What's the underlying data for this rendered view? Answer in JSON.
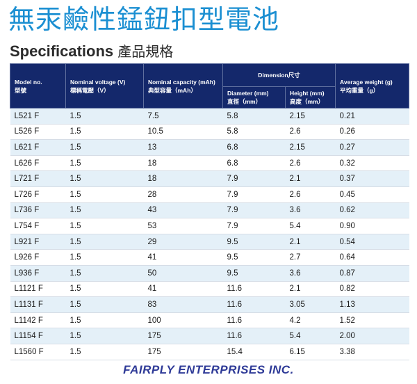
{
  "title": {
    "zh": "無汞鹼性錳鈕扣型電池",
    "en": "Specifications",
    "en_zh": "產品規格"
  },
  "table": {
    "headers": {
      "model": {
        "en": "Model no.",
        "zh": "型號"
      },
      "voltage": {
        "en": "Nominal voltage (V)",
        "zh": "標稱電壓（V）"
      },
      "capacity": {
        "en": "Nominal capacity (mAh)",
        "zh": "典型容量（mAh）"
      },
      "dimension": "Dimension尺寸",
      "diameter": {
        "en": "Diameter (mm)",
        "zh": "直徑（mm）"
      },
      "height": {
        "en": "Height (mm)",
        "zh": "高度（mm）"
      },
      "weight": {
        "en": "Average weight (g)",
        "zh": "平均重量（g）"
      }
    },
    "rows": [
      {
        "model": "L521 F",
        "voltage": "1.5",
        "capacity": "7.5",
        "diameter": "5.8",
        "height": "2.15",
        "weight": "0.21"
      },
      {
        "model": "L526 F",
        "voltage": "1.5",
        "capacity": "10.5",
        "diameter": "5.8",
        "height": "2.6",
        "weight": "0.26"
      },
      {
        "model": "L621 F",
        "voltage": "1.5",
        "capacity": "13",
        "diameter": "6.8",
        "height": "2.15",
        "weight": "0.27"
      },
      {
        "model": "L626 F",
        "voltage": "1.5",
        "capacity": "18",
        "diameter": "6.8",
        "height": "2.6",
        "weight": "0.32"
      },
      {
        "model": "L721 F",
        "voltage": "1.5",
        "capacity": "18",
        "diameter": "7.9",
        "height": "2.1",
        "weight": "0.37"
      },
      {
        "model": "L726 F",
        "voltage": "1.5",
        "capacity": "28",
        "diameter": "7.9",
        "height": "2.6",
        "weight": "0.45"
      },
      {
        "model": "L736 F",
        "voltage": "1.5",
        "capacity": "43",
        "diameter": "7.9",
        "height": "3.6",
        "weight": "0.62"
      },
      {
        "model": "L754 F",
        "voltage": "1.5",
        "capacity": "53",
        "diameter": "7.9",
        "height": "5.4",
        "weight": "0.90"
      },
      {
        "model": "L921 F",
        "voltage": "1.5",
        "capacity": "29",
        "diameter": "9.5",
        "height": "2.1",
        "weight": "0.54"
      },
      {
        "model": "L926 F",
        "voltage": "1.5",
        "capacity": "41",
        "diameter": "9.5",
        "height": "2.7",
        "weight": "0.64"
      },
      {
        "model": "L936 F",
        "voltage": "1.5",
        "capacity": "50",
        "diameter": "9.5",
        "height": "3.6",
        "weight": "0.87"
      },
      {
        "model": "L1121 F",
        "voltage": "1.5",
        "capacity": "41",
        "diameter": "11.6",
        "height": "2.1",
        "weight": "0.82"
      },
      {
        "model": "L1131 F",
        "voltage": "1.5",
        "capacity": "83",
        "diameter": "11.6",
        "height": "3.05",
        "weight": "1.13"
      },
      {
        "model": "L1142 F",
        "voltage": "1.5",
        "capacity": "100",
        "diameter": "11.6",
        "height": "4.2",
        "weight": "1.52"
      },
      {
        "model": "L1154 F",
        "voltage": "1.5",
        "capacity": "175",
        "diameter": "11.6",
        "height": "5.4",
        "weight": "2.00"
      },
      {
        "model": "L1560 F",
        "voltage": "1.5",
        "capacity": "175",
        "diameter": "15.4",
        "height": "6.15",
        "weight": "3.38"
      }
    ]
  },
  "footer": "FAIRPLY ENTERPRISES INC.",
  "colors": {
    "title_blue": "#1b8fd2",
    "header_navy": "#14286b",
    "row_tint": "#e4f0f8",
    "footer_blue": "#2e3a97"
  }
}
